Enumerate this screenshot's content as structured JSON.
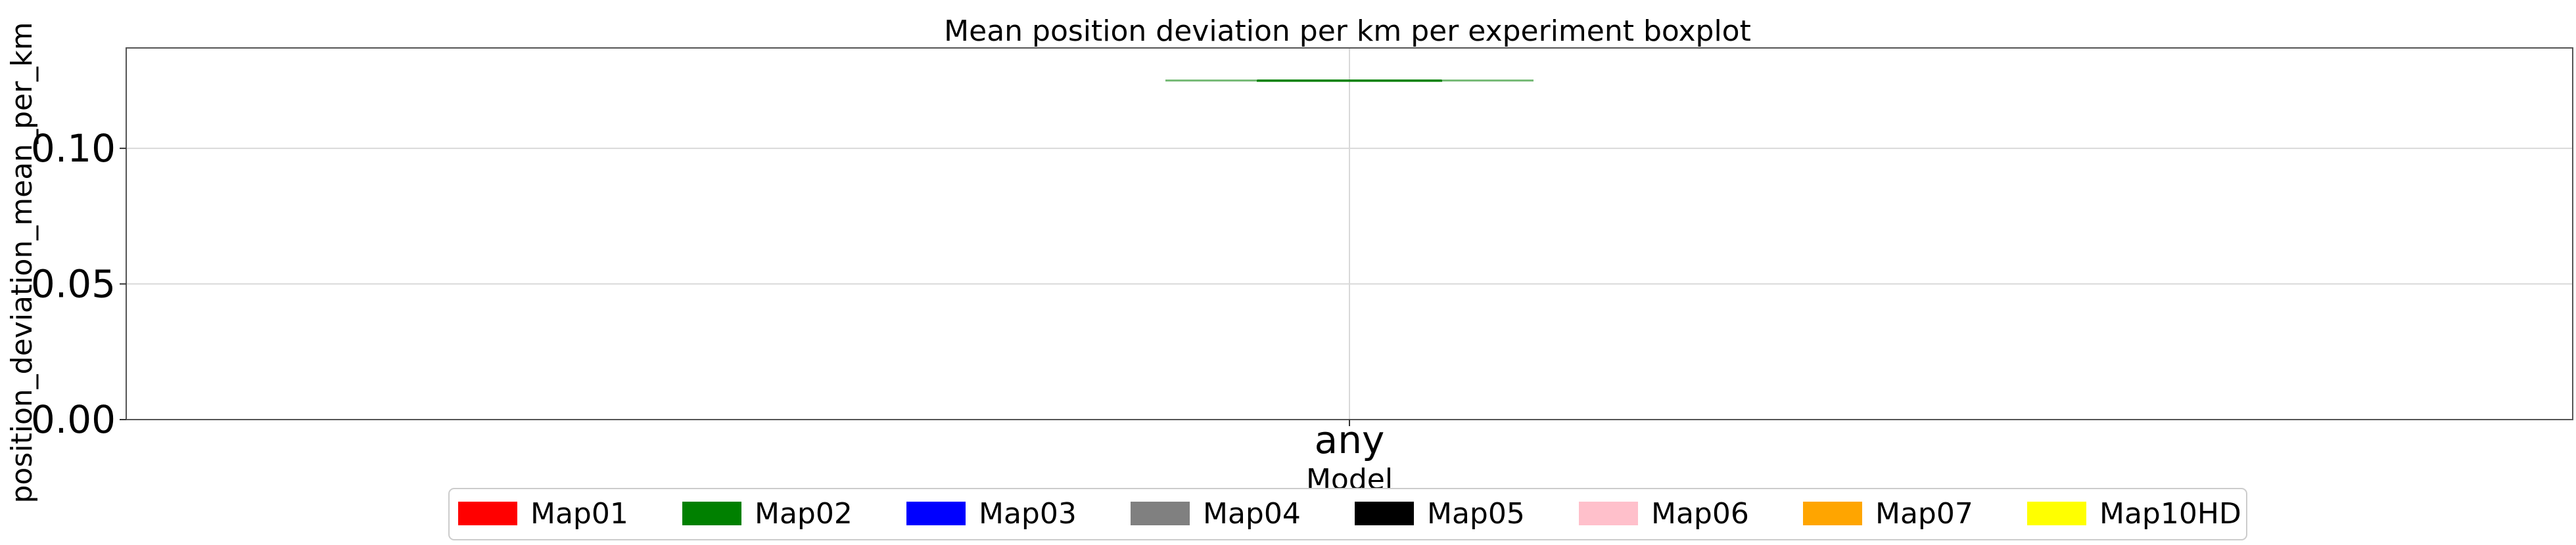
{
  "chart_data": {
    "type": "box",
    "title": "Mean position deviation per km per experiment boxplot",
    "xlabel": "Model",
    "ylabel": "position_deviation_mean_per_km",
    "categories": [
      "any"
    ],
    "ylim": [
      0,
      0.137
    ],
    "yticks": [
      0.0,
      0.05,
      0.1
    ],
    "ytick_labels": [
      "0.00",
      "0.05",
      "0.10"
    ],
    "grid": true,
    "legend_position": "bottom-center",
    "series": [
      {
        "name": "Map02",
        "color": "#008000",
        "category": "any",
        "min": 0.125,
        "q1": 0.125,
        "median": 0.125,
        "q3": 0.125,
        "max": 0.125
      }
    ],
    "legend": [
      {
        "label": "Map01",
        "color": "#ff0000"
      },
      {
        "label": "Map02",
        "color": "#008000"
      },
      {
        "label": "Map03",
        "color": "#0000ff"
      },
      {
        "label": "Map04",
        "color": "#808080"
      },
      {
        "label": "Map05",
        "color": "#000000"
      },
      {
        "label": "Map06",
        "color": "#ffc0cb"
      },
      {
        "label": "Map07",
        "color": "#ffa500"
      },
      {
        "label": "Map10HD",
        "color": "#ffff00"
      }
    ]
  }
}
